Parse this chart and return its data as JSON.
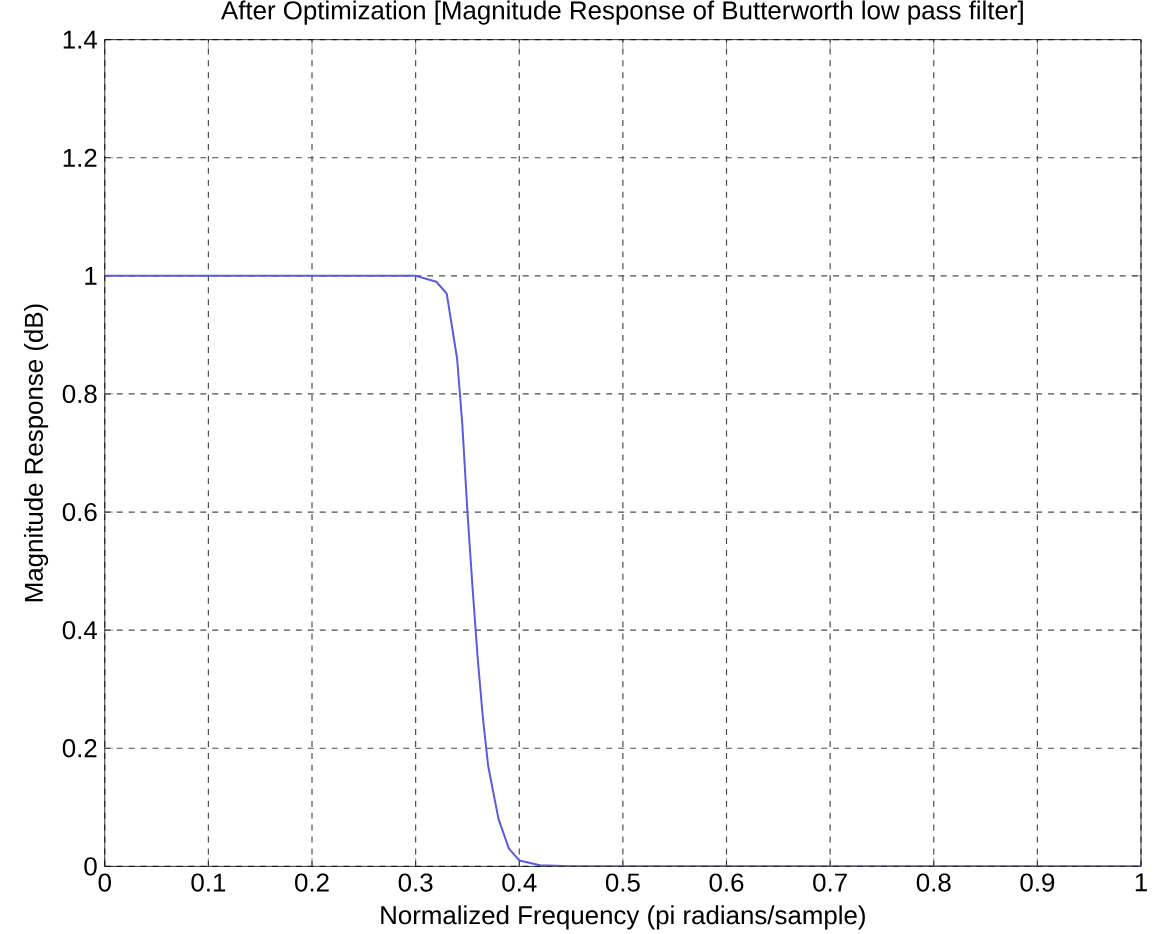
{
  "chart_data": {
    "type": "line",
    "title": "After Optimization [Magnitude Response of Butterworth low pass filter]",
    "xlabel": "Normalized Frequency (pi radians/sample)",
    "ylabel": "Magnitude Response (dB)",
    "x": [
      0,
      0.1,
      0.2,
      0.3,
      0.31,
      0.32,
      0.33,
      0.34,
      0.345,
      0.35,
      0.355,
      0.36,
      0.365,
      0.37,
      0.38,
      0.39,
      0.4,
      0.42,
      0.45,
      0.5,
      0.6,
      0.7,
      0.8,
      0.9,
      1
    ],
    "series": [
      {
        "color": "#5a5ae0",
        "values": [
          1,
          1,
          1,
          1,
          0.995,
          0.99,
          0.97,
          0.86,
          0.75,
          0.6,
          0.47,
          0.35,
          0.25,
          0.17,
          0.08,
          0.03,
          0.01,
          0.002,
          0,
          0,
          0,
          0,
          0,
          0,
          0
        ]
      }
    ],
    "xlim": [
      0,
      1
    ],
    "ylim": [
      0,
      1.4
    ],
    "xticks": [
      0,
      0.1,
      0.2,
      0.3,
      0.4,
      0.5,
      0.6,
      0.7,
      0.8,
      0.9,
      1
    ],
    "yticks": [
      0,
      0.2,
      0.4,
      0.6,
      0.8,
      1,
      1.2,
      1.4
    ],
    "grid": true,
    "line_style": "solid",
    "marker": "none"
  }
}
